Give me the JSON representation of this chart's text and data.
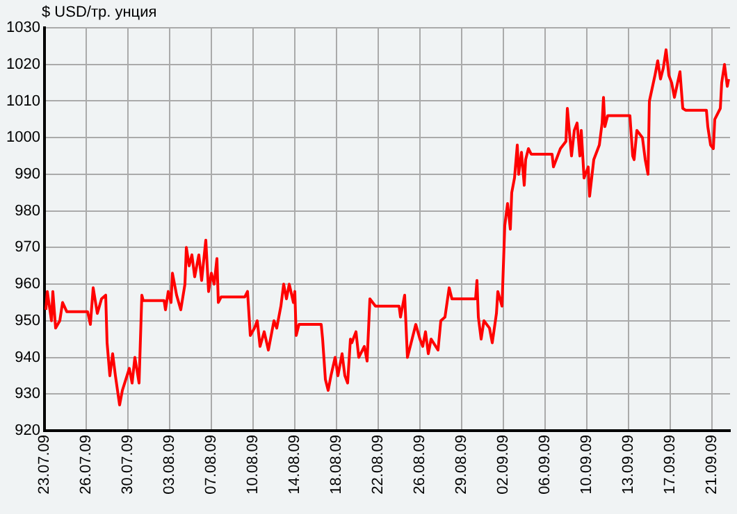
{
  "chart_data": {
    "type": "line",
    "ylabel": "$ USD/тр. унция",
    "grid": true,
    "legend": false,
    "marker": "none",
    "line_style": "solid",
    "ylim": [
      920,
      1030
    ],
    "yticks": [
      920,
      930,
      940,
      950,
      960,
      970,
      980,
      990,
      1000,
      1010,
      1020,
      1030
    ],
    "xlim": [
      "--07-23T00:00",
      "--09-22T15:00"
    ],
    "xticks": [
      {
        "value": "--07-23T00:00",
        "label": "23.07.09"
      },
      {
        "value": "--07-26T18:00",
        "label": "26.07.09"
      },
      {
        "value": "--07-30T12:00",
        "label": "30.07.09"
      },
      {
        "value": "--08-03T06:00",
        "label": "03.08.09"
      },
      {
        "value": "--08-07T00:00",
        "label": "07.08.09"
      },
      {
        "value": "--08-10T18:00",
        "label": "10.08.09"
      },
      {
        "value": "--08-14T12:00",
        "label": "14.08.09"
      },
      {
        "value": "--08-18T06:00",
        "label": "18.08.09"
      },
      {
        "value": "--08-22T00:00",
        "label": "22.08.09"
      },
      {
        "value": "--08-25T18:00",
        "label": "26.08.09"
      },
      {
        "value": "--08-29T12:00",
        "label": "29.08.09"
      },
      {
        "value": "--09-02T06:00",
        "label": "02.09.09"
      },
      {
        "value": "--09-06T00:00",
        "label": "06.09.09"
      },
      {
        "value": "--09-09T18:00",
        "label": "10.09.09"
      },
      {
        "value": "--09-13T12:00",
        "label": "13.09.09"
      },
      {
        "value": "--09-17T06:00",
        "label": "17.09.09"
      },
      {
        "value": "--09-21T00:00",
        "label": "21.09.09"
      }
    ],
    "series": [
      {
        "color": "#ff0000",
        "x": [
          "--07-23T03:00",
          "--07-23T06:00",
          "--07-23T15:00",
          "--07-23T18:00",
          "--07-24T00:00",
          "--07-24T09:00",
          "--07-24T15:00",
          "--07-25T00:00",
          "--07-26T21:00",
          "--07-27T03:00",
          "--07-27T09:00",
          "--07-27T18:00",
          "--07-28T03:00",
          "--07-28T12:00",
          "--07-28T15:00",
          "--07-28T21:00",
          "--07-29T03:00",
          "--07-29T09:00",
          "--07-29T18:00",
          "--07-30T00:00",
          "--07-30T15:00",
          "--07-30T21:00",
          "--07-31T03:00",
          "--07-31T12:00",
          "--07-31T18:00",
          "--07-31T21:00",
          "--08-02T18:00",
          "--08-02T21:00",
          "--08-03T03:00",
          "--08-03T09:00",
          "--08-03T12:00",
          "--08-03T21:00",
          "--08-04T06:00",
          "--08-04T15:00",
          "--08-04T18:00",
          "--08-05T00:00",
          "--08-05T06:00",
          "--08-05T12:00",
          "--08-05T21:00",
          "--08-06T03:00",
          "--08-06T12:00",
          "--08-06T18:00",
          "--08-07T00:00",
          "--08-07T06:00",
          "--08-07T12:00",
          "--08-07T15:00",
          "--08-07T21:00",
          "--08-10T00:00",
          "--08-10T06:00",
          "--08-10T12:00",
          "--08-10T21:00",
          "--08-11T03:00",
          "--08-11T09:00",
          "--08-11T18:00",
          "--08-12T03:00",
          "--08-12T15:00",
          "--08-12T21:00",
          "--08-13T06:00",
          "--08-13T12:00",
          "--08-13T18:00",
          "--08-14T00:00",
          "--08-14T09:00",
          "--08-14T12:00",
          "--08-14T15:00",
          "--08-14T21:00",
          "--08-16T21:00",
          "--08-17T00:00",
          "--08-17T06:00",
          "--08-17T12:00",
          "--08-17T18:00",
          "--08-18T03:00",
          "--08-18T09:00",
          "--08-18T18:00",
          "--08-19T00:00",
          "--08-19T06:00",
          "--08-19T12:00",
          "--08-19T15:00",
          "--08-20T00:00",
          "--08-20T06:00",
          "--08-20T18:00",
          "--08-21T00:00",
          "--08-21T06:00",
          "--08-21T18:00",
          "--08-23T21:00",
          "--08-24T00:00",
          "--08-24T09:00",
          "--08-24T15:00",
          "--08-24T21:00",
          "--08-25T09:00",
          "--08-25T18:00",
          "--08-26T00:00",
          "--08-26T06:00",
          "--08-26T12:00",
          "--08-26T18:00",
          "--08-27T09:00",
          "--08-27T15:00",
          "--08-28T00:00",
          "--08-28T09:00",
          "--08-28T15:00",
          "--08-30T18:00",
          "--08-30T21:00",
          "--08-31T00:00",
          "--08-31T06:00",
          "--08-31T12:00",
          "--09-01T00:00",
          "--09-01T06:00",
          "--09-01T15:00",
          "--09-01T18:00",
          "--09-02T03:00",
          "--09-02T06:00",
          "--09-02T09:00",
          "--09-02T15:00",
          "--09-02T21:00",
          "--09-03T00:00",
          "--09-03T06:00",
          "--09-03T12:00",
          "--09-03T15:00",
          "--09-03T21:00",
          "--09-04T03:00",
          "--09-04T06:00",
          "--09-04T12:00",
          "--09-04T18:00",
          "--09-06T15:00",
          "--09-06T18:00",
          "--09-07T00:00",
          "--09-07T09:00",
          "--09-07T21:00",
          "--09-08T00:00",
          "--09-08T09:00",
          "--09-08T15:00",
          "--09-08T21:00",
          "--09-09T03:00",
          "--09-09T06:00",
          "--09-09T12:00",
          "--09-09T21:00",
          "--09-10T00:00",
          "--09-10T09:00",
          "--09-10T21:00",
          "--09-11T03:00",
          "--09-11T06:00",
          "--09-11T09:00",
          "--09-11T15:00",
          "--09-13T15:00",
          "--09-13T21:00",
          "--09-14T00:00",
          "--09-14T06:00",
          "--09-14T18:00",
          "--09-15T00:00",
          "--09-15T06:00",
          "--09-15T09:00",
          "--09-15T21:00",
          "--09-16T03:00",
          "--09-16T09:00",
          "--09-16T15:00",
          "--09-16T21:00",
          "--09-17T03:00",
          "--09-17T09:00",
          "--09-17T15:00",
          "--09-18T03:00",
          "--09-18T09:00",
          "--09-18T15:00",
          "--09-20T12:00",
          "--09-20T15:00",
          "--09-20T21:00",
          "--09-21T03:00",
          "--09-21T06:00",
          "--09-21T18:00",
          "--09-21T21:00",
          "--09-22T03:00",
          "--09-22T09:00",
          "--09-22T12:00"
        ],
        "values": [
          953,
          958,
          950,
          958,
          948,
          950,
          955,
          952.5,
          952.5,
          949,
          959,
          952,
          956,
          957,
          944,
          935,
          941,
          935,
          927,
          931,
          937,
          933,
          940,
          933,
          957,
          955.5,
          955.5,
          953,
          958,
          955,
          963,
          957,
          953,
          960,
          970,
          965,
          968,
          962,
          968,
          961,
          972,
          958,
          963,
          960,
          967,
          955,
          956.5,
          956.5,
          958,
          946,
          948,
          950,
          943,
          947,
          942,
          950,
          948,
          954,
          960,
          956,
          960,
          955,
          958,
          946,
          949,
          949,
          945,
          934,
          931,
          935,
          940,
          935,
          941,
          935,
          933,
          945,
          944,
          947,
          940,
          943,
          939,
          956,
          954,
          954,
          951,
          957,
          940,
          943,
          949,
          945,
          943,
          947,
          941,
          945,
          942,
          950,
          951,
          959,
          956,
          956,
          961,
          951,
          945,
          950,
          948,
          944,
          952,
          958,
          954,
          965,
          976,
          982,
          975,
          985,
          989,
          998,
          990,
          996,
          987,
          994,
          997,
          995.5,
          995.5,
          992,
          994,
          997,
          999,
          1008,
          995,
          1002,
          1004,
          995,
          1002,
          989,
          992,
          984,
          994,
          998,
          1004,
          1011,
          1003,
          1006,
          1006,
          995,
          994,
          1002,
          1000,
          994,
          990,
          1010,
          1017,
          1021,
          1016,
          1019,
          1024,
          1017,
          1015,
          1011,
          1018,
          1008,
          1007.5,
          1007.5,
          1003,
          998,
          997,
          1005,
          1008,
          1015,
          1020,
          1014,
          1016
        ]
      }
    ]
  }
}
